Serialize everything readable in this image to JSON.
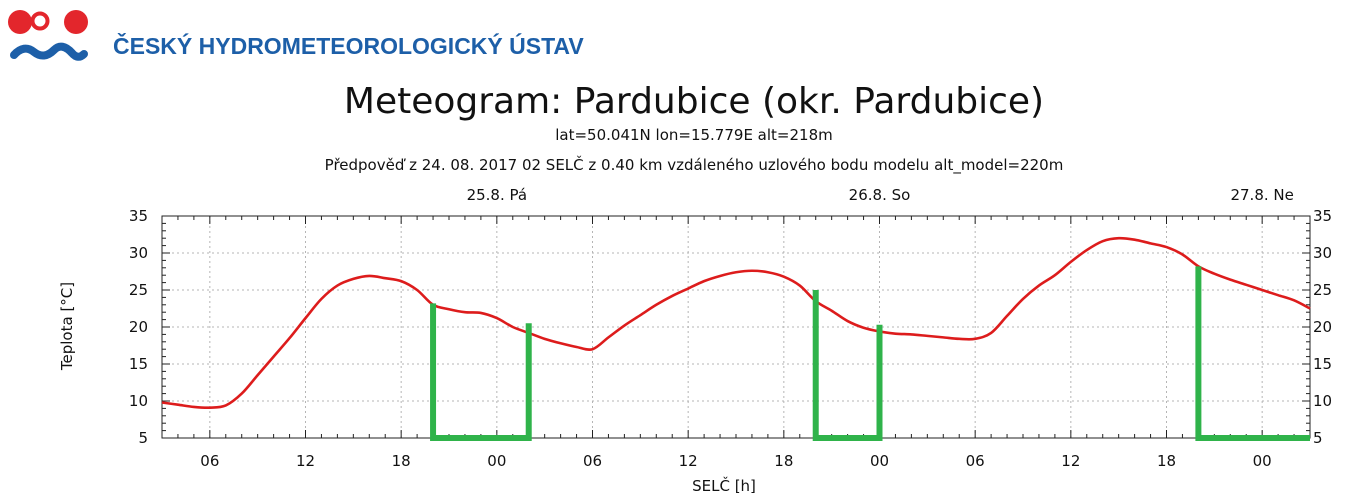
{
  "header": {
    "org_name": "ČESKÝ HYDROMETEOROLOGICKÝ ÚSTAV",
    "logo_colors": {
      "red": "#e3262c",
      "blue": "#1d5fa8"
    }
  },
  "chart_data": {
    "type": "line",
    "title": "Meteogram: Pardubice (okr. Pardubice)",
    "subtitle": "lat=50.041N lon=15.779E alt=218m",
    "subtitle2": "Předpověď z 24. 08. 2017 02 SELČ z 0.40 km vzdáleného uzlového bodu modelu alt_model=220m",
    "xlabel": "SELČ [h]",
    "ylabel": "Teplota [°C]",
    "ylim": [
      5,
      35
    ],
    "yticks": [
      5,
      10,
      15,
      20,
      25,
      30,
      35
    ],
    "xlim": [
      3,
      75
    ],
    "xticks": [
      {
        "h": 6,
        "label": "06"
      },
      {
        "h": 12,
        "label": "12"
      },
      {
        "h": 18,
        "label": "18"
      },
      {
        "h": 24,
        "label": "00"
      },
      {
        "h": 30,
        "label": "06"
      },
      {
        "h": 36,
        "label": "12"
      },
      {
        "h": 42,
        "label": "18"
      },
      {
        "h": 48,
        "label": "00"
      },
      {
        "h": 54,
        "label": "06"
      },
      {
        "h": 60,
        "label": "12"
      },
      {
        "h": 66,
        "label": "18"
      },
      {
        "h": 72,
        "label": "00"
      }
    ],
    "day_labels": [
      {
        "h": 24,
        "label": "25.8. Pá"
      },
      {
        "h": 48,
        "label": "26.8. So"
      },
      {
        "h": 72,
        "label": "27.8. Ne"
      }
    ],
    "grid": true,
    "series": [
      {
        "color": "#dd1c1c",
        "x": [
          3,
          4,
          5,
          6,
          7,
          8,
          9,
          10,
          11,
          12,
          13,
          14,
          15,
          16,
          17,
          18,
          19,
          20,
          21,
          22,
          23,
          24,
          25,
          26,
          27,
          28,
          29,
          30,
          31,
          32,
          33,
          34,
          35,
          36,
          37,
          38,
          39,
          40,
          41,
          42,
          43,
          44,
          45,
          46,
          47,
          48,
          49,
          50,
          51,
          52,
          53,
          54,
          55,
          56,
          57,
          58,
          59,
          60,
          61,
          62,
          63,
          64,
          65,
          66,
          67,
          68,
          69,
          70,
          71,
          72,
          73,
          74,
          75
        ],
        "y": [
          9.8,
          9.5,
          9.2,
          9.1,
          9.4,
          11.0,
          13.5,
          16.0,
          18.5,
          21.2,
          23.8,
          25.6,
          26.5,
          26.9,
          26.6,
          26.2,
          25.0,
          23.0,
          22.4,
          22.0,
          21.9,
          21.2,
          20.0,
          19.2,
          18.4,
          17.8,
          17.3,
          17.0,
          18.6,
          20.2,
          21.6,
          23.0,
          24.2,
          25.2,
          26.2,
          26.9,
          27.4,
          27.6,
          27.4,
          26.8,
          25.6,
          23.5,
          22.2,
          20.8,
          19.9,
          19.4,
          19.1,
          19.0,
          18.8,
          18.6,
          18.4,
          18.4,
          19.2,
          21.5,
          23.8,
          25.6,
          27.0,
          28.8,
          30.4,
          31.6,
          32.0,
          31.8,
          31.3,
          30.8,
          29.8,
          28.2,
          27.2,
          26.4,
          25.7,
          25.0,
          24.3,
          23.6,
          22.5
        ]
      },
      {
        "color": "#2fb34a",
        "segments": [
          [
            [
              20,
              23.2
            ],
            [
              20,
              5
            ],
            [
              26,
              5
            ],
            [
              26,
              20.5
            ]
          ],
          [
            [
              44,
              25.0
            ],
            [
              44,
              5
            ],
            [
              48,
              5
            ],
            [
              48,
              20.3
            ]
          ],
          [
            [
              68,
              28.2
            ],
            [
              68,
              5
            ],
            [
              75,
              5
            ]
          ]
        ]
      }
    ]
  }
}
